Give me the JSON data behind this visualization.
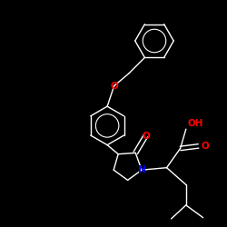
{
  "background": "#000000",
  "bond_color": "#ffffff",
  "atom_colors": {
    "O": "#ff0000",
    "N": "#0000ff"
  },
  "figsize": [
    2.5,
    2.5
  ],
  "dpi": 100,
  "xlim": [
    0,
    10
  ],
  "ylim": [
    0,
    10
  ]
}
